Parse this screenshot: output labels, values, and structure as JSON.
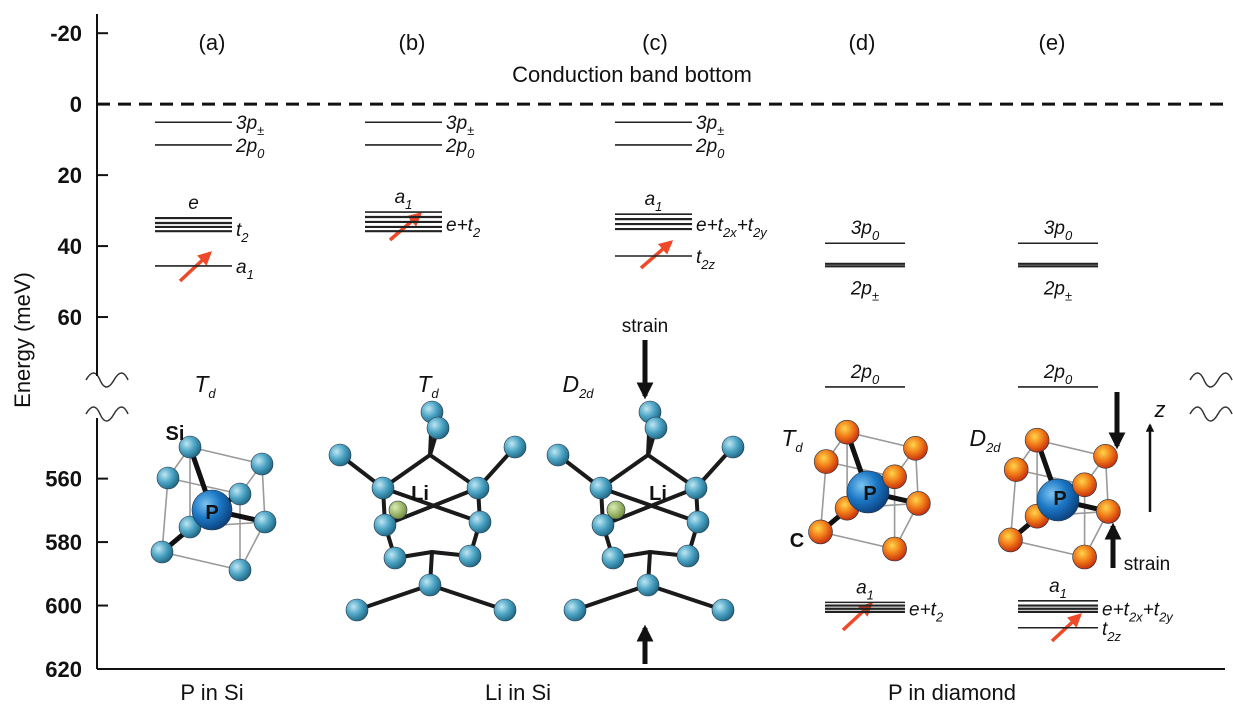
{
  "axis": {
    "label": "Energy (meV)",
    "upper": {
      "ylim": [
        -24,
        80
      ],
      "yticks": [
        -20,
        0,
        20,
        40,
        60
      ]
    },
    "lower": {
      "ylim": [
        539,
        620
      ],
      "yticks": [
        560,
        580,
        600,
        620
      ]
    }
  },
  "conduction_band": {
    "label": "Conduction band bottom",
    "energy": 0
  },
  "panels": [
    {
      "label": "(a)",
      "symmetry": [
        "T",
        {
          "sub": "d"
        }
      ],
      "structure_labels": [
        "Si",
        "P"
      ],
      "levels": [
        {
          "energies": [
            5.1
          ],
          "label": [
            "3p",
            {
              "sub": "±"
            }
          ]
        },
        {
          "energies": [
            11.5
          ],
          "label": [
            "2p",
            {
              "sub": "0"
            }
          ]
        },
        {
          "energies": [
            32.1,
            33.5
          ],
          "label": [
            "e"
          ]
        },
        {
          "energies": [
            34.6,
            35.8
          ],
          "label": [
            "t",
            {
              "sub": "2"
            }
          ]
        },
        {
          "energies": [
            45.6
          ],
          "label": [
            "a",
            {
              "sub": "1"
            }
          ]
        }
      ]
    },
    {
      "label": "(b)",
      "symmetry": [
        "T",
        {
          "sub": "d"
        }
      ],
      "structure_labels": [
        "Li"
      ],
      "levels": [
        {
          "energies": [
            5.1
          ],
          "label": [
            "3p",
            {
              "sub": "±"
            }
          ]
        },
        {
          "energies": [
            11.5
          ],
          "label": [
            "2p",
            {
              "sub": "0"
            }
          ]
        },
        {
          "energies": [
            30.4
          ],
          "label": [
            "a",
            {
              "sub": "1"
            }
          ]
        },
        {
          "energies": [
            31.8,
            33.2,
            34.6,
            35.8
          ],
          "label": [
            "e+t",
            {
              "sub": "2"
            }
          ]
        }
      ]
    },
    {
      "label": "(c)",
      "symmetry": [
        "D",
        {
          "sub": "2d"
        }
      ],
      "structure_labels": [
        "Li",
        "strain"
      ],
      "levels": [
        {
          "energies": [
            5.1
          ],
          "label": [
            "3p",
            {
              "sub": "±"
            }
          ]
        },
        {
          "energies": [
            11.5
          ],
          "label": [
            "2p",
            {
              "sub": "0"
            }
          ]
        },
        {
          "energies": [
            31
          ],
          "label": [
            "a",
            {
              "sub": "1"
            }
          ]
        },
        {
          "energies": [
            32.4,
            33.8,
            35.2
          ],
          "label": [
            "e+t",
            {
              "sub": "2x"
            },
            "+t",
            {
              "sub": "2y"
            }
          ]
        },
        {
          "energies": [
            42.8
          ],
          "label": [
            "t",
            {
              "sub": "2z"
            }
          ]
        }
      ]
    },
    {
      "label": "(d)",
      "symmetry": [
        "T",
        {
          "sub": "d"
        }
      ],
      "structure_labels": [
        "P",
        "C"
      ],
      "levels": [
        {
          "energies": [
            39.2
          ],
          "label": [
            "3p",
            {
              "sub": "0"
            }
          ]
        },
        {
          "energies": [
            45,
            45.7
          ],
          "label": [
            "2p",
            {
              "sub": "±"
            }
          ]
        },
        {
          "energies": [
            79.7
          ],
          "label": [
            "2p",
            {
              "sub": "0"
            }
          ]
        },
        {
          "energies": [
            599
          ],
          "label": [
            "a",
            {
              "sub": "1"
            }
          ]
        },
        {
          "energies": [
            600,
            601,
            602
          ],
          "label": [
            "e+t",
            {
              "sub": "2"
            }
          ]
        }
      ]
    },
    {
      "label": "(e)",
      "symmetry": [
        "D",
        {
          "sub": "2d"
        }
      ],
      "structure_labels": [
        "P",
        "z",
        "strain"
      ],
      "levels": [
        {
          "energies": [
            39.2
          ],
          "label": [
            "3p",
            {
              "sub": "0"
            }
          ]
        },
        {
          "energies": [
            45,
            45.7
          ],
          "label": [
            "2p",
            {
              "sub": "±"
            }
          ]
        },
        {
          "energies": [
            79.7
          ],
          "label": [
            "2p",
            {
              "sub": "0"
            }
          ]
        },
        {
          "energies": [
            598.5
          ],
          "label": [
            "a",
            {
              "sub": "1"
            }
          ]
        },
        {
          "energies": [
            600,
            601,
            602
          ],
          "label": [
            "e+t",
            {
              "sub": "2x"
            },
            "+t",
            {
              "sub": "2y"
            }
          ]
        },
        {
          "energies": [
            607
          ],
          "label": [
            "t",
            {
              "sub": "2z"
            }
          ]
        }
      ]
    }
  ],
  "groups": [
    "P in Si",
    "Li in Si",
    "P in diamond"
  ]
}
